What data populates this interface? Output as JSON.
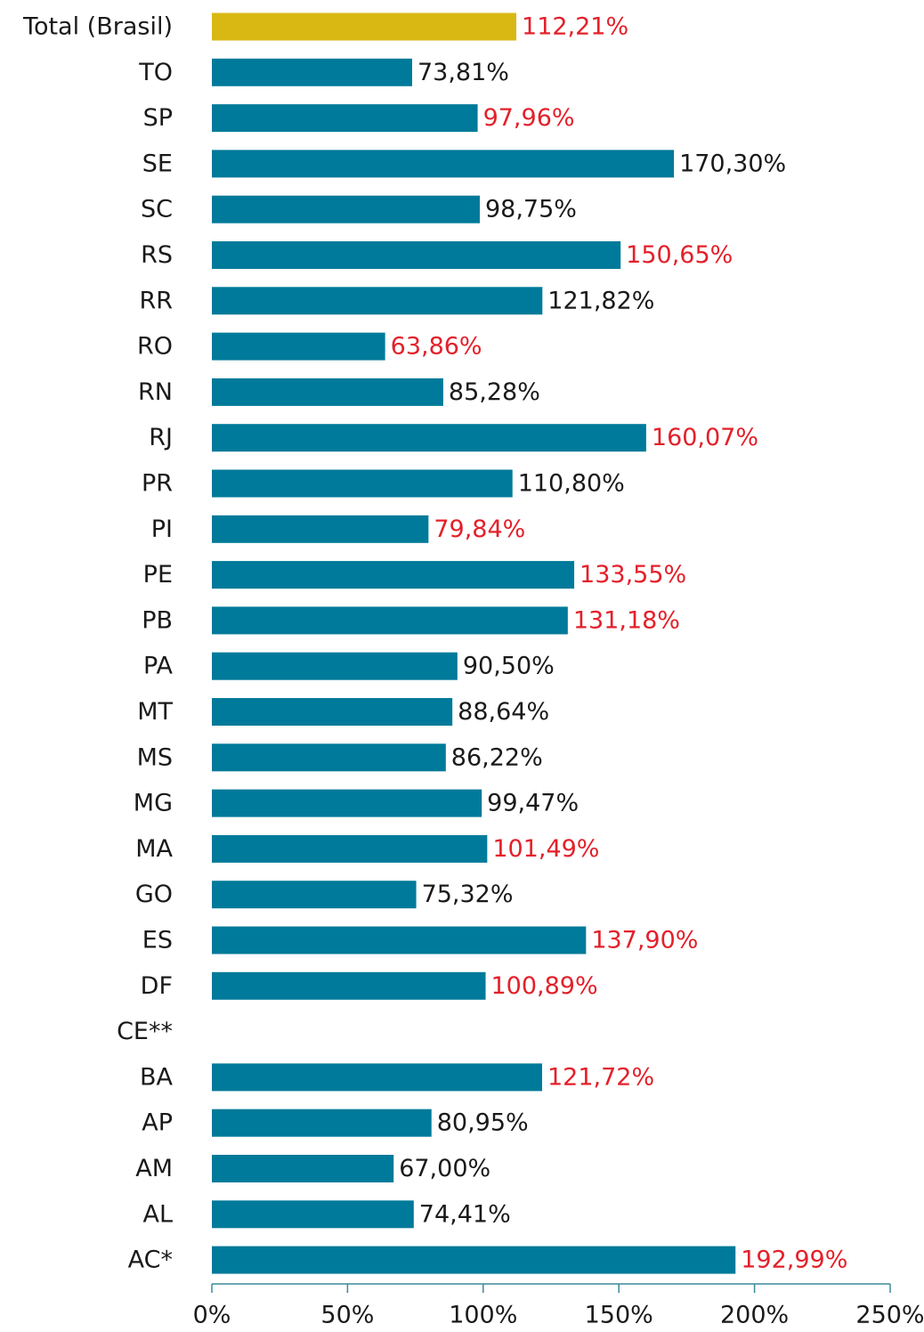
{
  "chart_data": {
    "type": "barh",
    "categories": [
      "Total (Brasil)",
      "TO",
      "SP",
      "SE",
      "SC",
      "RS",
      "RR",
      "RO",
      "RN",
      "RJ",
      "PR",
      "PI",
      "PE",
      "PB",
      "PA",
      "MT",
      "MS",
      "MG",
      "MA",
      "GO",
      "ES",
      "DF",
      "CE**",
      "BA",
      "AP",
      "AM",
      "AL",
      "AC*"
    ],
    "values": [
      112.21,
      73.81,
      97.96,
      170.3,
      98.75,
      150.65,
      121.82,
      63.86,
      85.28,
      160.07,
      110.8,
      79.84,
      133.55,
      131.18,
      90.5,
      88.64,
      86.22,
      99.47,
      101.49,
      75.32,
      137.9,
      100.89,
      null,
      121.72,
      80.95,
      67.0,
      74.41,
      192.99
    ],
    "value_labels": [
      "112,21%",
      "73,81%",
      "97,96%",
      "170,30%",
      "98,75%",
      "150,65%",
      "121,82%",
      "63,86%",
      "85,28%",
      "160,07%",
      "110,80%",
      "79,84%",
      "133,55%",
      "131,18%",
      "90,50%",
      "88,64%",
      "86,22%",
      "99,47%",
      "101,49%",
      "75,32%",
      "137,90%",
      "100,89%",
      null,
      "121,72%",
      "80,95%",
      "67,00%",
      "74,41%",
      "192,99%"
    ],
    "colors": [
      "#d9b814",
      "#007a9a",
      "#007a9a",
      "#007a9a",
      "#007a9a",
      "#007a9a",
      "#007a9a",
      "#007a9a",
      "#007a9a",
      "#007a9a",
      "#007a9a",
      "#007a9a",
      "#007a9a",
      "#007a9a",
      "#007a9a",
      "#007a9a",
      "#007a9a",
      "#007a9a",
      "#007a9a",
      "#007a9a",
      "#007a9a",
      "#007a9a",
      null,
      "#007a9a",
      "#007a9a",
      "#007a9a",
      "#007a9a",
      "#007a9a"
    ],
    "value_label_colors": [
      "#e3202a",
      "#1a1a1a",
      "#e3202a",
      "#1a1a1a",
      "#1a1a1a",
      "#e3202a",
      "#1a1a1a",
      "#e3202a",
      "#1a1a1a",
      "#e3202a",
      "#1a1a1a",
      "#e3202a",
      "#e3202a",
      "#e3202a",
      "#1a1a1a",
      "#1a1a1a",
      "#1a1a1a",
      "#1a1a1a",
      "#e3202a",
      "#1a1a1a",
      "#e3202a",
      "#e3202a",
      null,
      "#e3202a",
      "#1a1a1a",
      "#1a1a1a",
      "#1a1a1a",
      "#e3202a"
    ],
    "xlim": [
      0,
      250
    ],
    "xticks": [
      {
        "value": 0,
        "label": "0%"
      },
      {
        "value": 50,
        "label": "50%"
      },
      {
        "value": 100,
        "label": "100%"
      },
      {
        "value": 150,
        "label": "150%"
      },
      {
        "value": 200,
        "label": "200%"
      },
      {
        "value": 250,
        "label": "250%"
      }
    ],
    "grid": false
  }
}
